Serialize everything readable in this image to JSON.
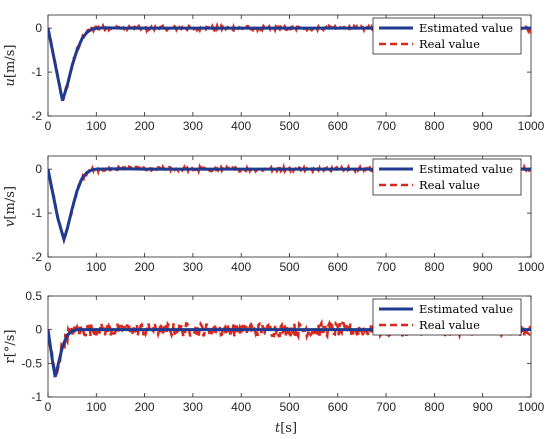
{
  "figure": {
    "xlabel_var": "t",
    "xlabel_unit": "[s]"
  },
  "chart_data": [
    {
      "type": "line",
      "panel": "u",
      "ylabel_var": "u",
      "ylabel_unit": "[m/s]",
      "xlim": [
        0,
        1000
      ],
      "ylim": [
        -2,
        0.3
      ],
      "xticks": [
        "0",
        "100",
        "200",
        "300",
        "400",
        "500",
        "600",
        "700",
        "800",
        "900",
        "1000"
      ],
      "yticks": [
        "0",
        "-1",
        "-2"
      ],
      "ytick_values": [
        0,
        -1,
        -2
      ],
      "grid": false,
      "legend_position": "top-right",
      "series": [
        {
          "name": "Estimated value",
          "style": "solid",
          "color": "#1f3a8f",
          "x": [
            0,
            30,
            40,
            50,
            60,
            70,
            80,
            90,
            100,
            120,
            150,
            200,
            300,
            400,
            500,
            600,
            700,
            800,
            900,
            1000
          ],
          "y": [
            0,
            -1.65,
            -1.3,
            -0.85,
            -0.5,
            -0.25,
            -0.1,
            -0.03,
            0,
            0.01,
            0,
            0,
            0,
            0,
            0,
            0,
            0,
            0,
            0,
            0
          ]
        },
        {
          "name": "Real value",
          "style": "dashed",
          "color": "#d62a1f",
          "noise": 0.05,
          "x": [
            0,
            30,
            40,
            50,
            60,
            70,
            80,
            90,
            100,
            120,
            150,
            200,
            300,
            400,
            500,
            600,
            700,
            800,
            900,
            1000
          ],
          "y": [
            0,
            -1.65,
            -1.3,
            -0.85,
            -0.5,
            -0.25,
            -0.1,
            -0.03,
            0,
            0.01,
            0,
            0,
            0,
            0,
            0,
            0,
            0,
            0,
            0,
            0
          ]
        }
      ]
    },
    {
      "type": "line",
      "panel": "v",
      "ylabel_var": "v",
      "ylabel_unit": "[m/s]",
      "xlim": [
        0,
        1000
      ],
      "ylim": [
        -2,
        0.3
      ],
      "xticks": [
        "0",
        "100",
        "200",
        "300",
        "400",
        "500",
        "600",
        "700",
        "800",
        "900",
        "1000"
      ],
      "yticks": [
        "0",
        "-1",
        "-2"
      ],
      "ytick_values": [
        0,
        -1,
        -2
      ],
      "grid": false,
      "legend_position": "top-right",
      "series": [
        {
          "name": "Estimated value",
          "style": "solid",
          "color": "#1f3a8f",
          "x": [
            0,
            10,
            20,
            33,
            40,
            50,
            60,
            70,
            80,
            90,
            100,
            150,
            200,
            300,
            400,
            500,
            600,
            700,
            800,
            900,
            1000
          ],
          "y": [
            0,
            -0.55,
            -1.1,
            -1.6,
            -1.35,
            -0.9,
            -0.5,
            -0.22,
            -0.08,
            -0.02,
            0,
            0.01,
            0,
            0,
            0,
            0,
            0,
            0,
            0,
            0,
            0
          ]
        },
        {
          "name": "Real value",
          "style": "dashed",
          "color": "#d62a1f",
          "noise": 0.05,
          "x": [
            0,
            10,
            20,
            33,
            40,
            50,
            60,
            70,
            80,
            90,
            100,
            150,
            200,
            300,
            400,
            500,
            600,
            700,
            800,
            900,
            1000
          ],
          "y": [
            0,
            -0.55,
            -1.1,
            -1.6,
            -1.35,
            -0.9,
            -0.5,
            -0.22,
            -0.08,
            -0.02,
            0,
            0.01,
            0,
            0,
            0,
            0,
            0,
            0,
            0,
            0,
            0
          ]
        }
      ]
    },
    {
      "type": "line",
      "panel": "r",
      "ylabel_var": "r",
      "ylabel_unit": "[°/s]",
      "xlim": [
        0,
        1000
      ],
      "ylim": [
        -1,
        0.5
      ],
      "xticks": [
        "0",
        "100",
        "200",
        "300",
        "400",
        "500",
        "600",
        "700",
        "800",
        "900",
        "1000"
      ],
      "yticks": [
        "0.5",
        "0",
        "-0.5",
        "-1"
      ],
      "ytick_values": [
        0.5,
        0,
        -0.5,
        -1
      ],
      "grid": false,
      "legend_position": "top-right",
      "series": [
        {
          "name": "Estimated value",
          "style": "solid",
          "color": "#1f3a8f",
          "x": [
            0,
            10,
            15,
            20,
            30,
            40,
            50,
            60,
            80,
            100,
            200,
            300,
            400,
            500,
            600,
            700,
            800,
            900,
            1000
          ],
          "y": [
            0,
            -0.5,
            -0.7,
            -0.55,
            -0.25,
            -0.08,
            -0.02,
            0,
            0,
            0,
            0,
            0,
            0,
            0,
            0,
            0,
            0,
            0,
            0
          ]
        },
        {
          "name": "Real value",
          "style": "dashed",
          "color": "#d62a1f",
          "noise": 0.1,
          "x": [
            0,
            10,
            15,
            20,
            30,
            40,
            50,
            60,
            80,
            100,
            200,
            300,
            400,
            500,
            600,
            700,
            800,
            900,
            1000
          ],
          "y": [
            0,
            -0.5,
            -0.7,
            -0.55,
            -0.25,
            -0.08,
            -0.02,
            0,
            0,
            0,
            0,
            0,
            0,
            0,
            0,
            0,
            0,
            0,
            0
          ]
        }
      ]
    }
  ]
}
